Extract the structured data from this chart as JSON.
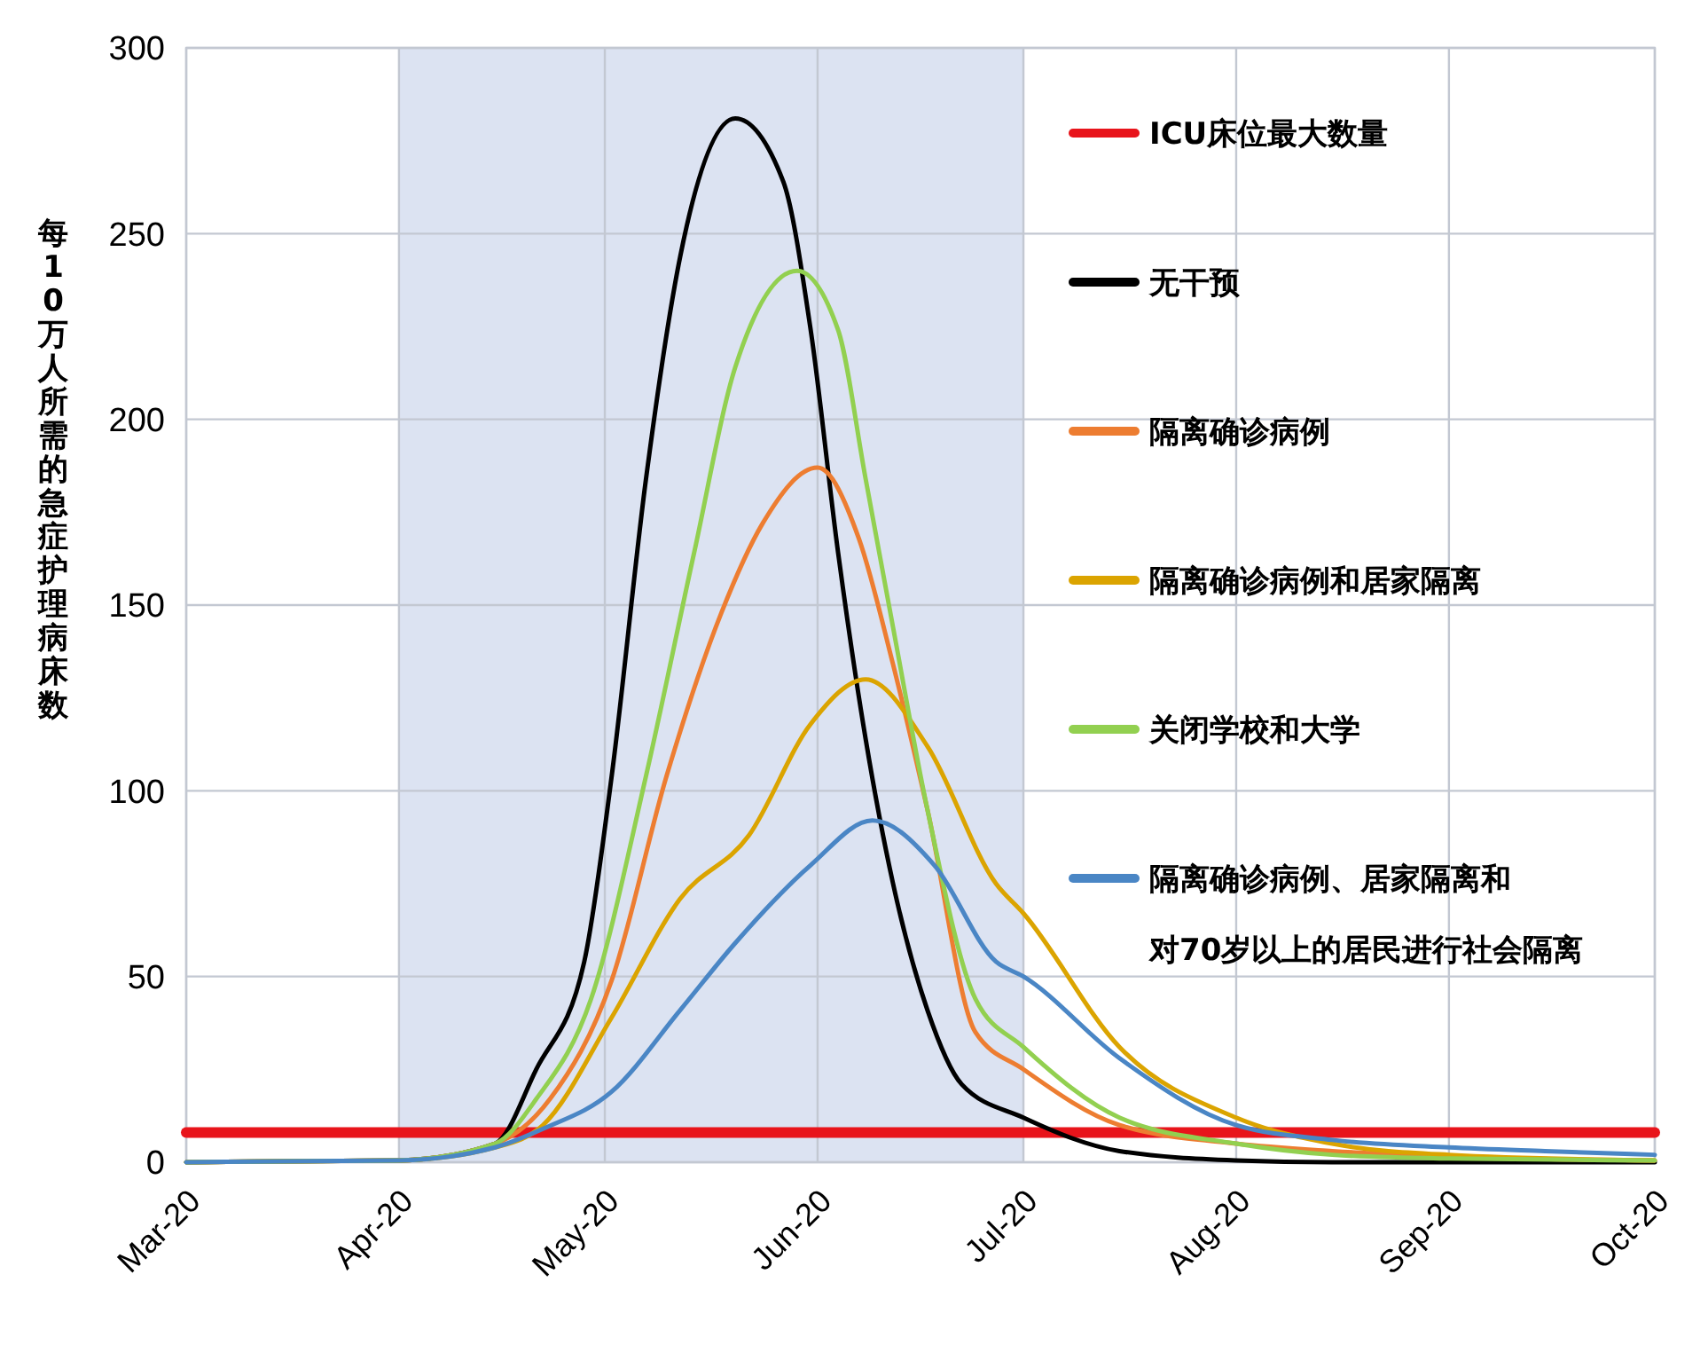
{
  "chart_data": {
    "type": "line",
    "ylabel": "每10万人所需的急症护理病床数",
    "xlim": [
      "2020-03-01",
      "2020-10-01"
    ],
    "xticks": [
      {
        "value": "2020-03-01",
        "label": "Mar-20"
      },
      {
        "value": "2020-04-01",
        "label": "Apr-20"
      },
      {
        "value": "2020-05-01",
        "label": "May-20"
      },
      {
        "value": "2020-06-01",
        "label": "Jun-20"
      },
      {
        "value": "2020-07-01",
        "label": "Jul-20"
      },
      {
        "value": "2020-08-01",
        "label": "Aug-20"
      },
      {
        "value": "2020-09-01",
        "label": "Sep-20"
      },
      {
        "value": "2020-10-01",
        "label": "Oct-20"
      }
    ],
    "ylim": [
      0,
      300
    ],
    "yticks": [
      0,
      50,
      100,
      150,
      200,
      250,
      300
    ],
    "grid": true,
    "legend": "right",
    "line_style": "solid",
    "bands": [
      {
        "axis": "x",
        "from": "2020-04-01",
        "to": "2020-07-01",
        "color": "#dce3f2"
      }
    ],
    "series": [
      {
        "name": "ICU床位最大数量",
        "color": "#e8141b",
        "x": [
          "2020-03-01",
          "2020-10-01"
        ],
        "values": [
          8,
          8
        ]
      },
      {
        "name": "无干预",
        "color": "#000000",
        "x": [
          "2020-03-01",
          "2020-04-01",
          "2020-04-15",
          "2020-04-21",
          "2020-04-28",
          "2020-05-02",
          "2020-05-07",
          "2020-05-12",
          "2020-05-20",
          "2020-05-27",
          "2020-05-31",
          "2020-06-04",
          "2020-06-08",
          "2020-06-12",
          "2020-06-17",
          "2020-06-22",
          "2020-07-01",
          "2020-07-15",
          "2020-08-01",
          "2020-08-15",
          "2020-10-01"
        ],
        "values": [
          0,
          0.5,
          5,
          25,
          54,
          104,
          184,
          244,
          281,
          264,
          224,
          164,
          114,
          75,
          41,
          21,
          12,
          3,
          0.5,
          0,
          0
        ]
      },
      {
        "name": "隔离确诊病例",
        "color": "#ed7d31",
        "x": [
          "2020-03-01",
          "2020-04-01",
          "2020-04-15",
          "2020-04-23",
          "2020-05-02",
          "2020-05-10",
          "2020-05-18",
          "2020-05-24",
          "2020-06-01",
          "2020-06-07",
          "2020-06-12",
          "2020-06-17",
          "2020-06-24",
          "2020-07-01",
          "2020-07-15",
          "2020-08-01",
          "2020-08-15",
          "2020-09-01",
          "2020-10-01"
        ],
        "values": [
          0,
          0.5,
          5,
          17,
          49,
          104,
          148,
          172,
          187,
          168,
          134,
          95,
          35,
          25,
          10,
          5,
          3,
          1.5,
          0.5
        ]
      },
      {
        "name": "隔离确诊病例和居家隔离",
        "color": "#dba400",
        "x": [
          "2020-03-01",
          "2020-04-01",
          "2020-04-15",
          "2020-04-22",
          "2020-05-02",
          "2020-05-12",
          "2020-05-22",
          "2020-05-31",
          "2020-06-08",
          "2020-06-17",
          "2020-06-27",
          "2020-07-01",
          "2020-07-15",
          "2020-08-01",
          "2020-08-15",
          "2020-09-01",
          "2020-10-01"
        ],
        "values": [
          0,
          0.5,
          4,
          10,
          39,
          71,
          88,
          118,
          130,
          112,
          75,
          67,
          31,
          12,
          5,
          2,
          0.5
        ]
      },
      {
        "name": "关闭学校和大学",
        "color": "#92d050",
        "x": [
          "2020-03-01",
          "2020-04-01",
          "2020-04-15",
          "2020-04-21",
          "2020-04-29",
          "2020-05-07",
          "2020-05-14",
          "2020-05-20",
          "2020-05-29",
          "2020-06-04",
          "2020-06-08",
          "2020-06-12",
          "2020-06-17",
          "2020-06-24",
          "2020-07-01",
          "2020-07-15",
          "2020-08-01",
          "2020-08-15",
          "2020-09-01",
          "2020-10-01"
        ],
        "values": [
          0,
          0.5,
          5,
          17,
          44,
          104,
          164,
          214,
          240,
          224,
          184,
          144,
          95,
          44,
          31,
          12,
          5,
          2,
          1,
          0.5
        ]
      },
      {
        "name": "隔离确诊病例、居家隔离和对70岁以上的居民进行社会隔离",
        "color": "#4a86c5",
        "x": [
          "2020-03-01",
          "2020-04-01",
          "2020-04-15",
          "2020-04-22",
          "2020-05-02",
          "2020-05-12",
          "2020-05-20",
          "2020-05-31",
          "2020-06-09",
          "2020-06-18",
          "2020-06-27",
          "2020-07-01",
          "2020-07-15",
          "2020-08-01",
          "2020-08-15",
          "2020-09-01",
          "2020-09-15",
          "2020-10-01"
        ],
        "values": [
          0,
          0.5,
          4,
          9,
          19,
          41,
          59,
          80,
          92,
          80,
          54,
          50,
          28,
          10,
          6,
          4,
          3,
          2
        ]
      }
    ]
  }
}
